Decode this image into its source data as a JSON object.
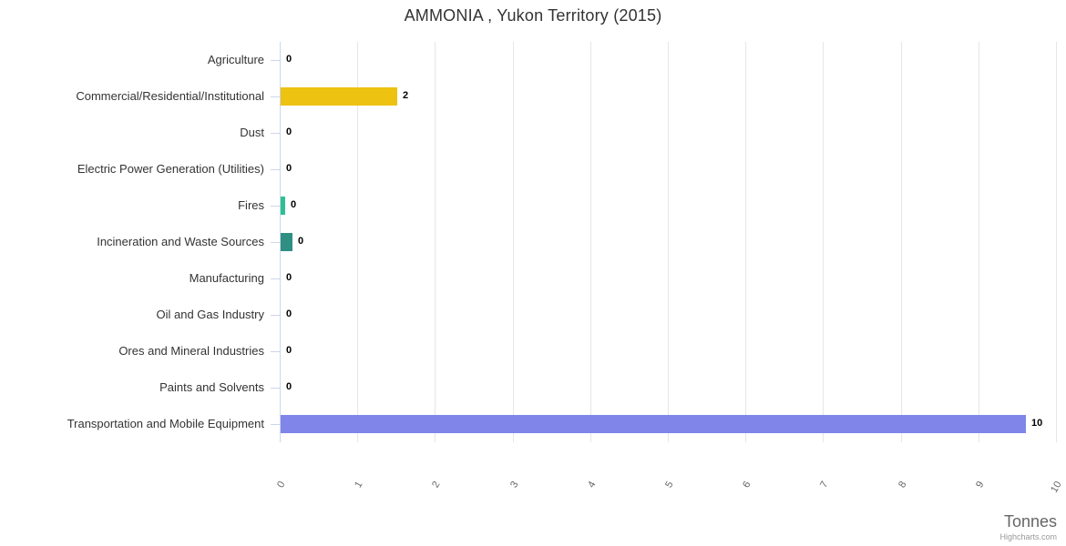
{
  "chart": {
    "title": "AMMONIA , Yukon Territory (2015)",
    "x_axis_title": "Tonnes",
    "credits": "Highcharts.com"
  },
  "chart_data": {
    "type": "bar",
    "orientation": "horizontal",
    "title": "AMMONIA , Yukon Territory (2015)",
    "xlabel": "Tonnes",
    "ylabel": "",
    "xlim": [
      0,
      10
    ],
    "x_ticks": [
      "0",
      "1",
      "2",
      "3",
      "4",
      "5",
      "6",
      "7",
      "8",
      "9",
      "10"
    ],
    "grid": true,
    "legend": "none",
    "categories": [
      "Agriculture",
      "Commercial/Residential/Institutional",
      "Dust",
      "Electric Power Generation (Utilities)",
      "Fires",
      "Incineration and Waste Sources",
      "Manufacturing",
      "Oil and Gas Industry",
      "Ores and Mineral Industries",
      "Paints and Solvents",
      "Transportation and Mobile Equipment"
    ],
    "values": [
      0,
      1.5,
      0,
      0,
      0.06,
      0.15,
      0,
      0,
      0,
      0,
      9.6
    ],
    "data_labels": [
      "0",
      "2",
      "0",
      "0",
      "0",
      "0",
      "0",
      "0",
      "0",
      "0",
      "10"
    ],
    "bar_colors": [
      "",
      "#edc211",
      "",
      "",
      "#2fbf95",
      "#2f8f83",
      "",
      "",
      "",
      "",
      "#8085e9"
    ],
    "axis_line_color": "#ccd6eb",
    "grid_line_color": "#e6e6e6"
  }
}
